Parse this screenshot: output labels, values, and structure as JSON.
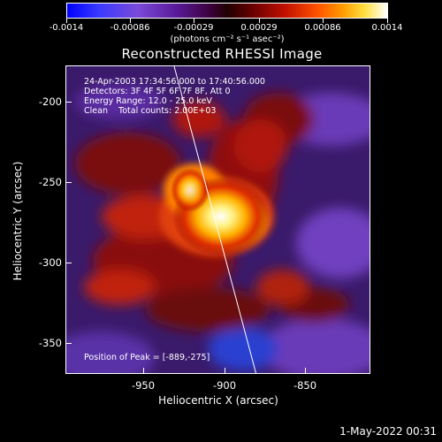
{
  "colorbar": {
    "ticks": [
      "-0.0014",
      "-0.00086",
      "-0.00029",
      "0.00029",
      "0.00086",
      "0.0014"
    ],
    "units": "(photons cm⁻² s⁻¹ asec⁻²)"
  },
  "plot": {
    "title": "Reconstructed RHESSI Image",
    "info": {
      "time": "24-Apr-2003 17:34:56.000 to 17:40:56.000",
      "detectors": "Detectors: 3F 4F 5F 6F 7F 8F, Att 0",
      "energy": "Energy Range: 12.0 - 25.0 keV",
      "clean": "Clean    Total counts: 2.00E+03"
    },
    "peak_label": "Position of Peak = [-889,-275]",
    "x_axis_title": "Heliocentric X (arcsec)",
    "y_axis_title": "Heliocentric Y (arcsec)",
    "x_ticks": [
      "-950",
      "-900",
      "-850"
    ],
    "y_ticks": [
      "-200",
      "-250",
      "-300",
      "-350"
    ]
  },
  "footer": {
    "timestamp": "1-May-2022 00:31"
  },
  "colors": {
    "background": "#000000",
    "foreground": "#ffffff"
  }
}
